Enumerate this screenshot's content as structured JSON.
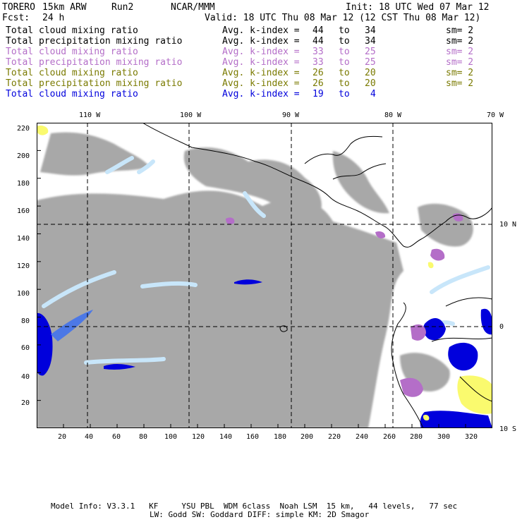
{
  "header": {
    "model": "TORERO",
    "run_desc": "15km ARW",
    "run": "Run2",
    "org": "NCAR/MMM",
    "init": "Init: 18 UTC Wed 07 Mar 12",
    "fcst_label": "Fcst:",
    "fcst_value": "24 h",
    "valid": "Valid: 18 UTC Thu 08 Mar 12 (12 CST Thu 08 Mar 12)"
  },
  "legend": [
    {
      "field": "Total cloud mixing ratio",
      "kindex": "Avg. k-index =",
      "from": "44",
      "to_label": "to",
      "to": "34",
      "sm": "sm= 2",
      "color": "#000000"
    },
    {
      "field": "Total precipitation mixing ratio",
      "kindex": "Avg. k-index =",
      "from": "44",
      "to_label": "to",
      "to": "34",
      "sm": "sm= 2",
      "color": "#000000"
    },
    {
      "field": "Total cloud mixing ratio",
      "kindex": "Avg. k-index =",
      "from": "33",
      "to_label": "to",
      "to": "25",
      "sm": "sm= 2",
      "color": "#b46ec8"
    },
    {
      "field": "Total precipitation mixing ratio",
      "kindex": "Avg. k-index =",
      "from": "33",
      "to_label": "to",
      "to": "25",
      "sm": "sm= 2",
      "color": "#b46ec8"
    },
    {
      "field": "Total cloud mixing ratio",
      "kindex": "Avg. k-index =",
      "from": "26",
      "to_label": "to",
      "to": "20",
      "sm": "sm= 2",
      "color": "#7a7a00"
    },
    {
      "field": "Total precipitation mixing ratio",
      "kindex": "Avg. k-index =",
      "from": "26",
      "to_label": "to",
      "to": "20",
      "sm": "sm= 2",
      "color": "#7a7a00"
    },
    {
      "field": "Total cloud mixing ratio",
      "kindex": "Avg. k-index =",
      "from": "19",
      "to_label": "to",
      "to": "4",
      "sm": "",
      "color": "#0000dc"
    }
  ],
  "map": {
    "x_ticks": [
      "20",
      "40",
      "60",
      "80",
      "100",
      "120",
      "140",
      "160",
      "180",
      "200",
      "220",
      "240",
      "260",
      "280",
      "300",
      "320"
    ],
    "y_ticks": [
      "20",
      "40",
      "60",
      "80",
      "100",
      "120",
      "140",
      "160",
      "180",
      "200",
      "220"
    ],
    "lon_labels": [
      "110 W",
      "100 W",
      "90 W",
      "80 W",
      "70 W"
    ],
    "lat_labels": [
      "10 N",
      "0",
      "10 S"
    ],
    "colors": {
      "gray_cloud": "#a8a8a8",
      "light_blue": "#c8e6fa",
      "mid_blue": "#4c78e6",
      "deep_blue": "#0000dc",
      "purple": "#b46ec8",
      "yellow": "#fafa6e",
      "coast": "#000000",
      "grid": "#000000"
    }
  },
  "footer": {
    "line1": "Model Info: V3.3.1   KF     YSU PBL  WDM 6class  Noah LSM  15 km,   44 levels,   77 sec",
    "line2": "LW: Godd SW: Goddard DIFF: simple KM: 2D Smagor"
  }
}
